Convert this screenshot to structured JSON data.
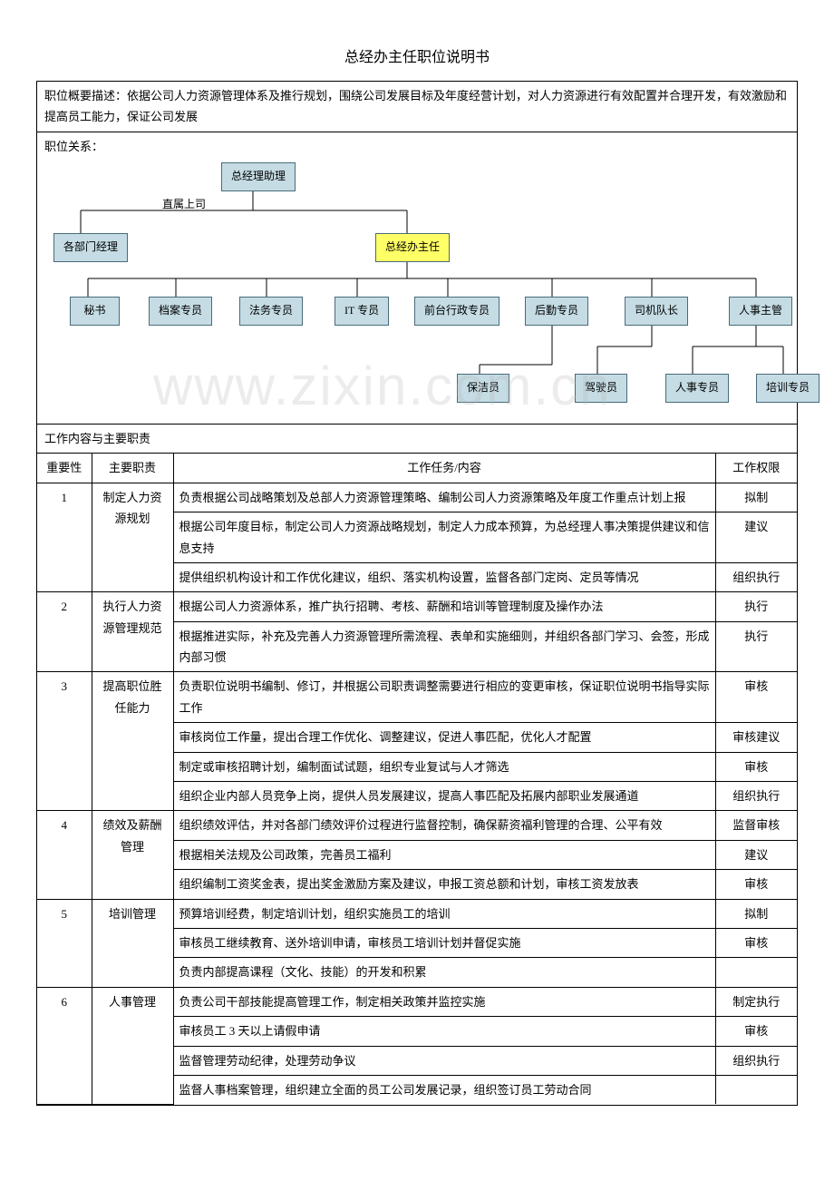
{
  "title": "总经办主任职位说明书",
  "overview_label": "职位概要描述：",
  "overview_text": "依据公司人力资源管理体系及推行规划，围绕公司发展目标及年度经营计划，对人力资源进行有效配置并合理开发，有效激励和提高员工能力，保证公司发展",
  "relation_label": "职位关系：",
  "side_label": "直属上司",
  "watermark_text": "www.zixin.com.cn",
  "org": {
    "top": "总经理助理",
    "left_peer": "各部门经理",
    "center": "总经办主任",
    "row3": [
      "秘书",
      "档案专员",
      "法务专员",
      "IT 专员",
      "前台行政专员",
      "后勤专员",
      "司机队长",
      "人事主管"
    ],
    "row4": [
      "保洁员",
      "驾驶员",
      "人事专员",
      "培训专员"
    ]
  },
  "colors": {
    "node_fill": "#c5dce4",
    "node_border": "#4a6a7a",
    "highlight_fill": "#ffff66"
  },
  "duties_header": "工作内容与主要职责",
  "table_headers": {
    "priority": "重要性",
    "duty": "主要职责",
    "task": "工作任务/内容",
    "auth": "工作权限"
  },
  "rows": [
    {
      "priority": "1",
      "duty": "制定人力资源规划",
      "tasks": [
        {
          "text": "负责根据公司战略策划及总部人力资源管理策略、编制公司人力资源策略及年度工作重点计划上报",
          "auth": "拟制"
        },
        {
          "text": "根据公司年度目标，制定公司人力资源战略规划，制定人力成本预算，为总经理人事决策提供建议和信息支持",
          "auth": "建议"
        },
        {
          "text": "提供组织机构设计和工作优化建议，组织、落实机构设置，监督各部门定岗、定员等情况",
          "auth": "组织执行"
        }
      ]
    },
    {
      "priority": "2",
      "duty": "执行人力资源管理规范",
      "tasks": [
        {
          "text": "根据公司人力资源体系，推广执行招聘、考核、薪酬和培训等管理制度及操作办法",
          "auth": "执行"
        },
        {
          "text": "根据推进实际，补充及完善人力资源管理所需流程、表单和实施细则，并组织各部门学习、会签，形成内部习惯",
          "auth": "执行"
        }
      ]
    },
    {
      "priority": "3",
      "duty": "提高职位胜任能力",
      "tasks": [
        {
          "text": "负责职位说明书编制、修订，并根据公司职责调整需要进行相应的变更审核，保证职位说明书指导实际工作",
          "auth": "审核"
        },
        {
          "text": "审核岗位工作量，提出合理工作优化、调整建议，促进人事匹配，优化人才配置",
          "auth": "审核建议"
        },
        {
          "text": "制定或审核招聘计划，编制面试试题，组织专业复试与人才筛选",
          "auth": "审核"
        },
        {
          "text": "组织企业内部人员竞争上岗，提供人员发展建议，提高人事匹配及拓展内部职业发展通道",
          "auth": "组织执行"
        }
      ]
    },
    {
      "priority": "4",
      "duty": "绩效及薪酬管理",
      "tasks": [
        {
          "text": "组织绩效评估，并对各部门绩效评价过程进行监督控制，确保薪资福利管理的合理、公平有效",
          "auth": "监督审核"
        },
        {
          "text": "根据相关法规及公司政策，完善员工福利",
          "auth": "建议"
        },
        {
          "text": "组织编制工资奖金表，提出奖金激励方案及建议，申报工资总额和计划，审核工资发放表",
          "auth": "审核"
        }
      ]
    },
    {
      "priority": "5",
      "duty": "培训管理",
      "tasks": [
        {
          "text": "预算培训经费，制定培训计划，组织实施员工的培训",
          "auth": "拟制"
        },
        {
          "text": "审核员工继续教育、送外培训申请，审核员工培训计划并督促实施",
          "auth": "审核"
        },
        {
          "text": "负责内部提高课程（文化、技能）的开发和积累",
          "auth": ""
        }
      ]
    },
    {
      "priority": "6",
      "duty": "人事管理",
      "tasks": [
        {
          "text": "负责公司干部技能提高管理工作，制定相关政策并监控实施",
          "auth": "制定执行"
        },
        {
          "text": "审核员工 3 天以上请假申请",
          "auth": "审核"
        },
        {
          "text": "监督管理劳动纪律，处理劳动争议",
          "auth": "组织执行"
        },
        {
          "text": "监督人事档案管理，组织建立全面的员工公司发展记录，组织签订员工劳动合同",
          "auth": ""
        }
      ]
    }
  ]
}
